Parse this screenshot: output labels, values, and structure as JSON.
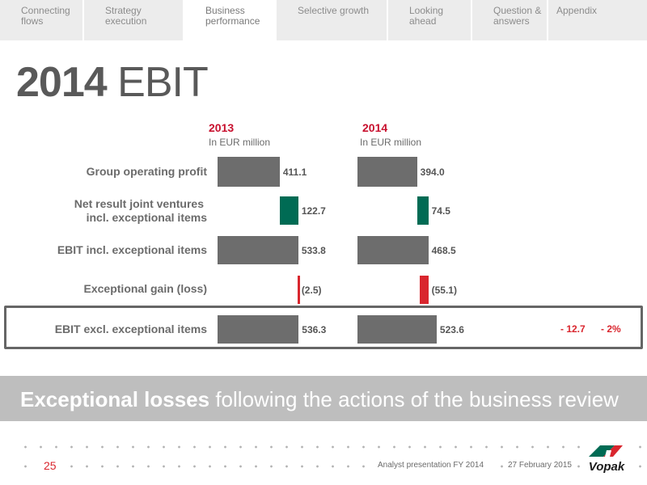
{
  "nav": [
    {
      "label": "Connecting flows",
      "active": false
    },
    {
      "label": "Strategy execution",
      "active": false
    },
    {
      "label": "Business performance",
      "active": true
    },
    {
      "label": "Selective growth",
      "active": false
    },
    {
      "label": "Looking ahead",
      "active": false
    },
    {
      "label": "Question & answers",
      "active": false
    },
    {
      "label": "Appendix",
      "active": false
    }
  ],
  "title": {
    "bold": "2014",
    "rest": " EBIT"
  },
  "chart_data": {
    "type": "bar",
    "unit": "In EUR million",
    "categories": [
      "Group operating profit",
      "Net result joint ventures incl. exceptional items",
      "EBIT incl. exceptional items",
      "Exceptional gain (loss)",
      "EBIT excl. exceptional items"
    ],
    "series": [
      {
        "name": "2013",
        "values": [
          411.1,
          122.7,
          533.8,
          -2.5,
          536.3
        ],
        "labels": [
          "411.1",
          "122.7",
          "533.8",
          "(2.5)",
          "536.3"
        ]
      },
      {
        "name": "2014",
        "values": [
          394.0,
          74.5,
          468.5,
          -55.1,
          523.6
        ],
        "labels": [
          "394.0",
          "74.5",
          "468.5",
          "(55.1)",
          "523.6"
        ]
      }
    ],
    "change": {
      "absolute": "- 12.7",
      "percent": "- 2%"
    }
  },
  "labels": {
    "row0": "Group operating profit",
    "row1_line1": "Net result joint ventures",
    "row1_line2": "incl. exceptional items",
    "row2": "EBIT incl. exceptional items",
    "row3": "Exceptional gain (loss)",
    "row4": "EBIT excl. exceptional items"
  },
  "banner": {
    "bold": "Exceptional losses",
    "rest": " following the actions of the business review"
  },
  "footer": {
    "page": "25",
    "presentation": "Analyst presentation FY 2014",
    "date": "27 February 2015"
  },
  "logo": {
    "text": "Vopak",
    "colors": {
      "green": "#006b54",
      "red": "#d9262e"
    }
  },
  "colors": {
    "accent": "#c8102e",
    "bar_grey": "#6d6d6d",
    "bar_green": "#006b54",
    "bar_red": "#d9262e"
  }
}
